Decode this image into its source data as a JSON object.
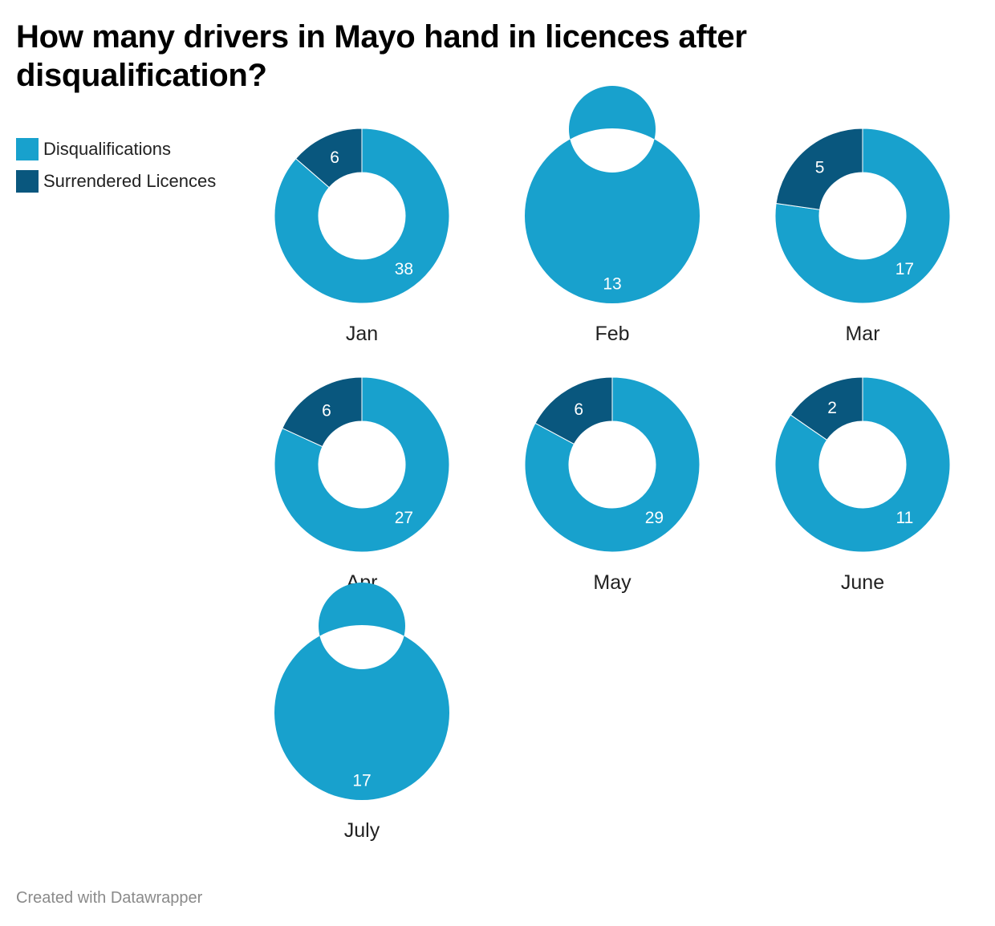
{
  "title": "How many drivers in Mayo hand in licences after disqualification?",
  "footer": "Created with Datawrapper",
  "colors": {
    "disqualifications": "#18a1cd",
    "surrendered": "#09577e",
    "background": "#ffffff",
    "label_on_light": "#ffffff",
    "label_on_dark": "#ffffff"
  },
  "legend": [
    {
      "label": "Disqualifications",
      "color": "#18a1cd"
    },
    {
      "label": "Surrendered Licences",
      "color": "#09577e"
    }
  ],
  "chart_data": {
    "type": "pie",
    "variant": "donut small multiples",
    "title": "How many drivers in Mayo hand in licences after disqualification?",
    "series_names": [
      "Disqualifications",
      "Surrendered Licences"
    ],
    "legend_position": "top-left",
    "charts": [
      {
        "name": "Jan",
        "disqualifications": 38,
        "surrendered": 6
      },
      {
        "name": "Feb",
        "disqualifications": 13,
        "surrendered": 0
      },
      {
        "name": "Mar",
        "disqualifications": 17,
        "surrendered": 5
      },
      {
        "name": "Apr",
        "disqualifications": 27,
        "surrendered": 6
      },
      {
        "name": "May",
        "disqualifications": 29,
        "surrendered": 6
      },
      {
        "name": "June",
        "disqualifications": 11,
        "surrendered": 2
      },
      {
        "name": "July",
        "disqualifications": 17,
        "surrendered": 0
      }
    ]
  }
}
